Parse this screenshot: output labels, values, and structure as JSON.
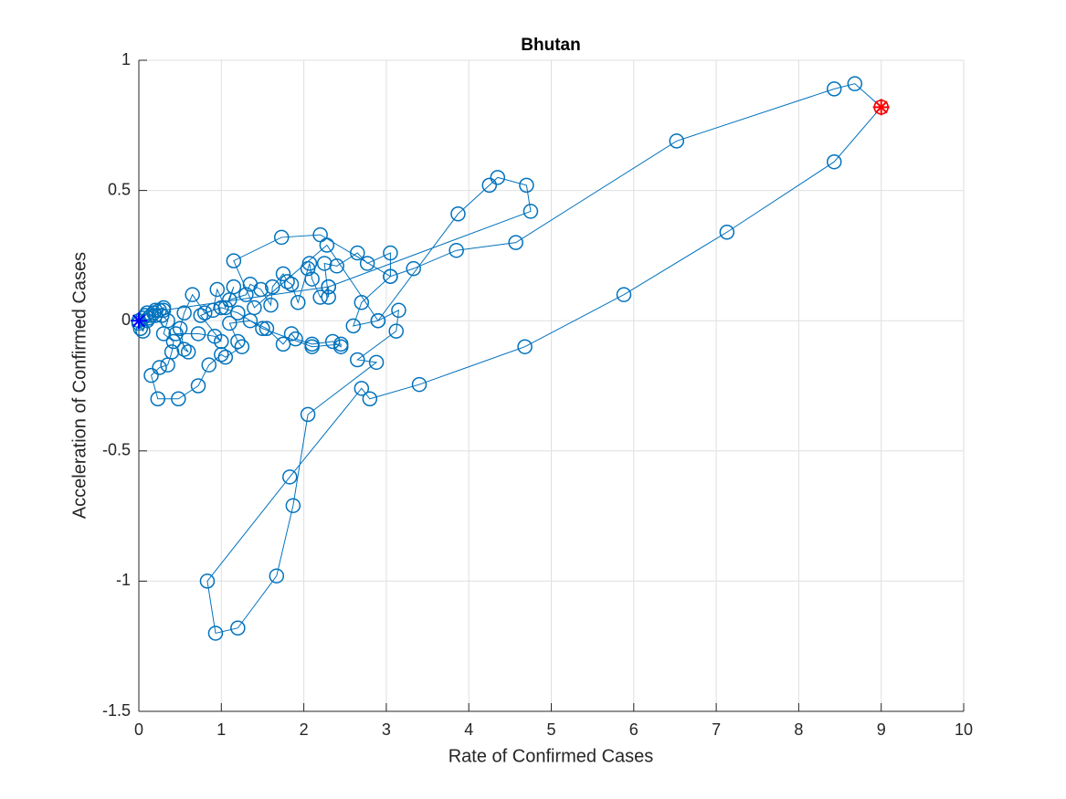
{
  "chart_data": {
    "type": "scatter",
    "title": "Bhutan",
    "xlabel": "Rate of Confirmed Cases",
    "ylabel": "Acceleration of Confirmed Cases",
    "color": "#0072bd",
    "grid": true,
    "xlim": [
      0,
      10
    ],
    "ylim": [
      -1.5,
      1
    ],
    "xticks": [
      0,
      1,
      2,
      3,
      4,
      5,
      6,
      7,
      8,
      9,
      10
    ],
    "yticks": [
      -1.5,
      -1,
      -0.5,
      0,
      0.5,
      1
    ],
    "x": [
      0,
      0.02,
      0.05,
      0.08,
      0.1,
      0.12,
      0.15,
      0.18,
      0.2,
      0.25,
      0.3,
      0.28,
      0.35,
      0.3,
      0.42,
      0.4,
      0.35,
      0.25,
      0.15,
      0.23,
      0.48,
      0.72,
      0.85,
      1.0,
      1.05,
      1.25,
      1.2,
      1.1,
      1.35,
      1.55,
      1.75,
      1.85,
      1.9,
      2.1,
      2.35,
      2.45,
      2.45,
      2.1,
      1.5,
      1.2,
      1.0,
      0.8,
      0.65,
      0.55,
      0.5,
      0.55,
      0.6,
      0.45,
      0.72,
      0.92,
      1.0,
      0.75,
      0.9,
      0.95,
      1.05,
      1.15,
      1.1,
      1.3,
      1.35,
      1.48,
      1.6,
      1.62,
      1.75,
      1.8,
      1.85,
      1.93,
      2.05,
      2.07,
      2.1,
      2.2,
      2.3,
      2.3,
      2.25,
      2.4,
      2.65,
      2.77,
      3.05,
      3.05,
      2.7,
      2.6,
      2.9,
      3.15,
      3.12,
      2.65,
      2.88,
      2.05,
      1.87,
      1.67,
      1.2,
      0.93,
      0.83,
      1.83,
      2.7,
      2.8,
      3.4,
      4.68,
      5.88,
      7.13,
      8.43,
      9.0,
      8.68,
      8.43,
      6.52,
      4.57,
      3.85,
      3.33,
      3.05,
      2.2,
      1.73,
      1.15,
      1.4,
      2.28,
      2.9,
      3.87,
      4.25,
      4.35,
      4.7,
      4.75,
      2.3,
      0.3,
      0.2,
      0.1,
      0.05,
      0.0
    ],
    "values": [
      0,
      -0.03,
      0.01,
      0.02,
      0.03,
      0.01,
      0.02,
      0.03,
      0.04,
      0.04,
      0.05,
      0.02,
      0.0,
      -0.05,
      -0.08,
      -0.12,
      -0.17,
      -0.18,
      -0.21,
      -0.3,
      -0.3,
      -0.25,
      -0.17,
      -0.13,
      -0.14,
      -0.1,
      -0.08,
      -0.01,
      0.0,
      -0.03,
      -0.09,
      -0.05,
      -0.07,
      -0.09,
      -0.08,
      -0.1,
      -0.09,
      -0.1,
      -0.03,
      0.03,
      0.05,
      0.03,
      0.1,
      0.03,
      -0.03,
      -0.11,
      -0.12,
      -0.05,
      -0.05,
      -0.06,
      -0.08,
      0.02,
      0.04,
      0.12,
      0.05,
      0.13,
      0.08,
      0.1,
      0.14,
      0.12,
      0.06,
      0.13,
      0.18,
      0.15,
      0.14,
      0.07,
      0.2,
      0.22,
      0.16,
      0.09,
      0.13,
      0.09,
      0.22,
      0.21,
      0.26,
      0.22,
      0.26,
      0.17,
      0.07,
      -0.02,
      0.0,
      0.04,
      -0.04,
      -0.15,
      -0.16,
      -0.36,
      -0.71,
      -0.98,
      -1.18,
      -1.2,
      -1.0,
      -0.6,
      -0.26,
      -0.3,
      -0.245,
      -0.1,
      0.1,
      0.34,
      0.61,
      0.82,
      0.91,
      0.89,
      0.69,
      0.3,
      0.27,
      0.2,
      0.17,
      0.33,
      0.32,
      0.23,
      0.05,
      0.29,
      0.0,
      0.41,
      0.52,
      0.55,
      0.52,
      0.42,
      0.13,
      0.04,
      0.02,
      0.0,
      -0.04,
      -0.01
    ],
    "start": {
      "x": 0,
      "y": 0,
      "color": "#0000ff"
    },
    "end": {
      "x": 9,
      "y": 0.82,
      "color": "#ff0000"
    }
  }
}
